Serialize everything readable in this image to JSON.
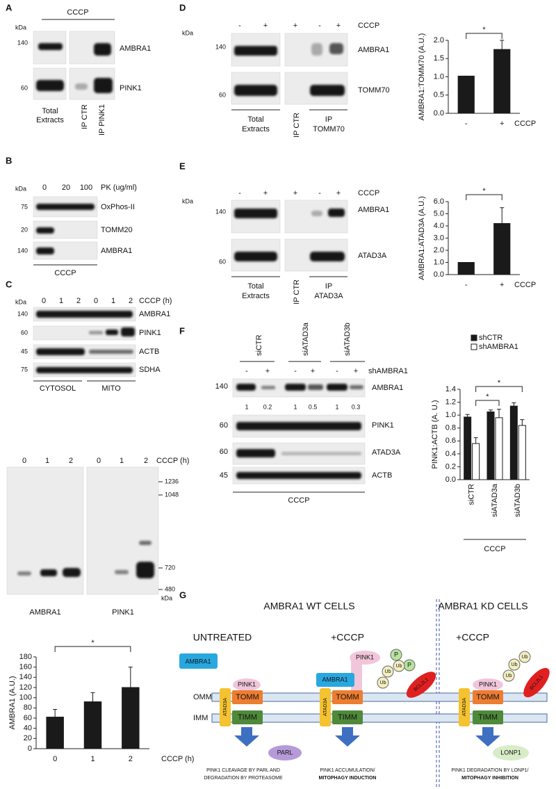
{
  "panels": {
    "A": {
      "label": "A",
      "kda": "kDa",
      "treatment": "CCCP",
      "mw": [
        "140",
        "60"
      ],
      "proteins": [
        "AMBRA1",
        "PINK1"
      ],
      "total": [
        "Total",
        "Extracts"
      ],
      "ip": [
        "IP CTR",
        "IP PINK1"
      ]
    },
    "B": {
      "label": "B",
      "kda": "kDa",
      "doses": [
        "0",
        "20",
        "100"
      ],
      "dose_label": "PK (ug/ml)",
      "mw": [
        "75",
        "20",
        "140"
      ],
      "proteins": [
        "OxPhos-II",
        "TOMM20",
        "AMBRA1"
      ],
      "treatment": "CCCP"
    },
    "C": {
      "label": "C",
      "kda": "kDa",
      "times": [
        "0",
        "1",
        "2",
        "0",
        "1",
        "2"
      ],
      "time_label": "CCCP (h)",
      "mw": [
        "140",
        "60",
        "45",
        "75"
      ],
      "proteins": [
        "AMBRA1",
        "PINK1",
        "ACTB",
        "SDHA"
      ],
      "fractions": [
        "CYTOSOL",
        "MITO"
      ],
      "native": {
        "times": [
          "0",
          "1",
          "2",
          "0",
          "1",
          "2"
        ],
        "time_label": "CCCP (h)",
        "markers": [
          "1236",
          "1048",
          "720",
          "480"
        ],
        "kda": "kDa",
        "proteins": [
          "AMBRA1",
          "PINK1"
        ]
      }
    },
    "D": {
      "label": "D",
      "kda": "kDa",
      "signs": [
        "-",
        "+",
        "+",
        "-",
        "+"
      ],
      "treatment": "CCCP",
      "mw": [
        "140",
        "60"
      ],
      "proteins": [
        "AMBRA1",
        "TOMM70"
      ],
      "total": [
        "Total",
        "Extracts"
      ],
      "ip_ctr": "IP CTR",
      "ip": [
        "IP",
        "TOMM70"
      ]
    },
    "E": {
      "label": "E",
      "kda": "kDa",
      "signs": [
        "-",
        "+",
        "+",
        "-",
        "+"
      ],
      "treatment": "CCCP",
      "mw": [
        "140",
        "60"
      ],
      "proteins": [
        "AMBRA1",
        "ATAD3A"
      ],
      "total": [
        "Total",
        "Extracts"
      ],
      "ip_ctr": "IP CTR",
      "ip": [
        "IP",
        "ATAD3A"
      ]
    },
    "F": {
      "label": "F",
      "groups": [
        "siCTR",
        "siATAD3a",
        "siATAD3b"
      ],
      "signs": [
        "-",
        "+",
        "-",
        "+",
        "-",
        "+"
      ],
      "sh_label": "shAMBRA1",
      "mw": [
        "140",
        "60",
        "60",
        "45"
      ],
      "proteins": [
        "AMBRA1",
        "PINK1",
        "ATAD3A",
        "ACTB"
      ],
      "ratios": [
        1,
        0.2,
        1,
        0.5,
        1,
        0.3
      ],
      "treatment": "CCCP"
    }
  },
  "diagram": {
    "label": "G",
    "wt_title": "AMBRA1 WT CELLS",
    "kd_title": "AMBRA1 KD CELLS",
    "conditions": [
      "UNTREATED",
      "+CCCP",
      "+CCCP"
    ],
    "membranes": [
      "OMM",
      "IMM"
    ],
    "untreated": {
      "ambra1": "AMBRA1",
      "pink1": "PINK1",
      "atad3a": "ATAD3A",
      "tomm": "TOMM",
      "timm": "TIMM",
      "protease": "PARL",
      "caption": [
        "PINK1 CLEAVAGE BY PARL AND",
        "DEGRADATION BY PROTEASOME"
      ]
    },
    "wt_cccp": {
      "ambra1": "AMBRA1",
      "pink1": "PINK1",
      "atad3a": "ATAD3A",
      "tomm": "TOMM",
      "timm": "TIMM",
      "p": [
        "P",
        "P"
      ],
      "ub": [
        "Ub",
        "Ub",
        "Ub"
      ],
      "bcl2l1": "BCL2L1",
      "caption": [
        "PINK1 ACCUMULATION/",
        "MITOPHAGY INDUCTION"
      ]
    },
    "kd_cccp": {
      "pink1": "PINK1",
      "atad3a": "ATAD3A",
      "tomm": "TOMM",
      "timm": "TIMM",
      "ub": [
        "Ub",
        "Ub",
        "Ub"
      ],
      "bcl2l1": "BCL2L1",
      "protease": "LONP1",
      "caption": [
        "PINK1 DEGRADATION BY LONP1/",
        "MITOPHAGY INHIBITION"
      ]
    }
  },
  "chart_data": [
    {
      "type": "bar",
      "ylabel": "AMBRA1 (A.U.)",
      "xlabel": "CCCP (h)",
      "categories": [
        "0",
        "1",
        "2"
      ],
      "series": [
        {
          "color": "#1a1a1a",
          "values": [
            62,
            92,
            120
          ],
          "errors": [
            15,
            18,
            40
          ]
        }
      ],
      "ylim": [
        0,
        180
      ],
      "yticks": [
        0,
        20,
        40,
        60,
        80,
        100,
        120,
        140,
        160,
        180
      ],
      "annotations": [
        "*"
      ]
    },
    {
      "type": "bar",
      "ylabel": "AMBRA1:TOMM70 (A.U.)",
      "xlabel": "CCCP",
      "categories": [
        "-",
        "+"
      ],
      "series": [
        {
          "color": "#1a1a1a",
          "values": [
            1.02,
            1.75
          ],
          "errors": [
            0,
            0.25
          ]
        }
      ],
      "ylim": [
        0,
        2
      ],
      "yticks": [
        {
          "value": 0,
          "label": "0.0"
        },
        0.5,
        {
          "value": 1,
          "label": "1.0"
        },
        1.5,
        {
          "value": 2,
          "label": "2.0"
        }
      ],
      "annotations": [
        "*"
      ]
    },
    {
      "type": "bar",
      "ylabel": "AMBRA1:ATAD3A (A.U.)",
      "xlabel": "CCCP",
      "categories": [
        "-",
        "+"
      ],
      "series": [
        {
          "color": "#1a1a1a",
          "values": [
            1.0,
            4.2
          ],
          "errors": [
            0,
            1.3
          ]
        }
      ],
      "ylim": [
        0,
        6
      ],
      "yticks": [
        {
          "value": 0,
          "label": "0.0"
        },
        {
          "value": 1,
          "label": "1.0"
        },
        {
          "value": 2,
          "label": "2.0"
        },
        {
          "value": 3,
          "label": "3.0"
        },
        {
          "value": 4,
          "label": "4.0"
        },
        {
          "value": 5,
          "label": "5.0"
        },
        {
          "value": 6,
          "label": "6.0"
        }
      ],
      "annotations": [
        "*"
      ]
    },
    {
      "type": "bar",
      "ylabel": "PINK1:ACTB (A. U.)",
      "xlabel": "CCCP",
      "categories": [
        "siCTR",
        "siATAD3a",
        "siATAD3b"
      ],
      "series": [
        {
          "name": "shCTR",
          "color": "#1a1a1a",
          "values": [
            0.97,
            1.05,
            1.14
          ],
          "errors": [
            0.04,
            0.03,
            0.05
          ]
        },
        {
          "name": "shAMBRA1",
          "color": "#ffffff",
          "values": [
            0.56,
            0.96,
            0.84
          ],
          "errors": [
            0.09,
            0.13,
            0.09
          ]
        }
      ],
      "ylim": [
        0,
        1.4
      ],
      "yticks": [
        {
          "value": 0,
          "label": "0.0"
        },
        0.2,
        0.4,
        0.6,
        0.8,
        {
          "value": 1,
          "label": "1.0"
        },
        1.2,
        1.4
      ],
      "annotations": [
        "*",
        "*"
      ]
    }
  ]
}
